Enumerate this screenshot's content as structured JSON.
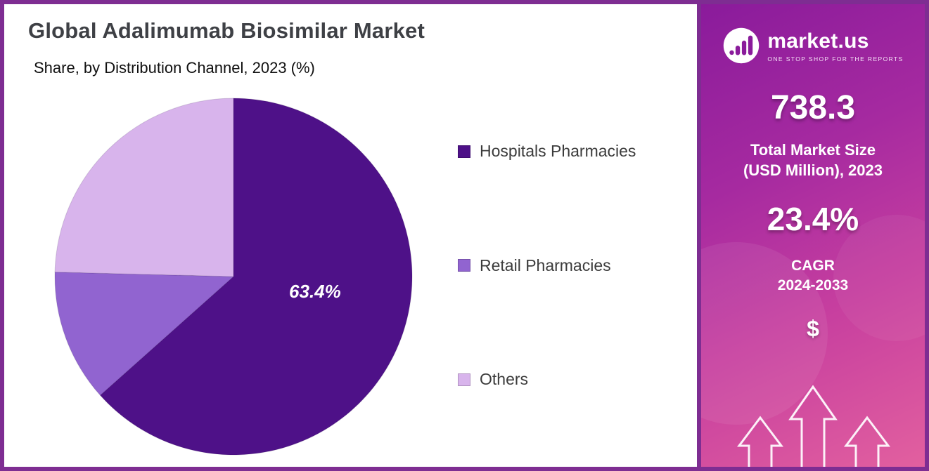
{
  "chart_data": {
    "type": "pie",
    "title": "Global Adalimumab Biosimilar Market",
    "subtitle": "Share, by Distribution Channel, 2023 (%)",
    "categories": [
      "Hospitals Pharmacies",
      "Retail Pharmacies",
      "Others"
    ],
    "values": [
      63.4,
      12.0,
      24.6
    ],
    "colors": [
      "#4e1188",
      "#9164d0",
      "#d8b4ec"
    ],
    "labeled_slice": {
      "category": "Hospitals Pharmacies",
      "label": "63.4%"
    },
    "start_angle_deg": -90,
    "direction": "clockwise",
    "legend_position": "right"
  },
  "sidebar": {
    "logo": {
      "name": "market.us",
      "tagline": "ONE STOP SHOP FOR THE REPORTS"
    },
    "market_size_value": "738.3",
    "market_size_label_line1": "Total Market Size",
    "market_size_label_line2": "(USD Million), 2023",
    "cagr_value": "23.4%",
    "cagr_label": "CAGR",
    "cagr_period": "2024-2033",
    "dollar_symbol": "$"
  },
  "colors": {
    "frame_border": "#7e2d92",
    "sidebar_gradient_top": "#8a1b9b",
    "sidebar_gradient_bottom": "#e2609f",
    "title_text": "#3e4045"
  }
}
